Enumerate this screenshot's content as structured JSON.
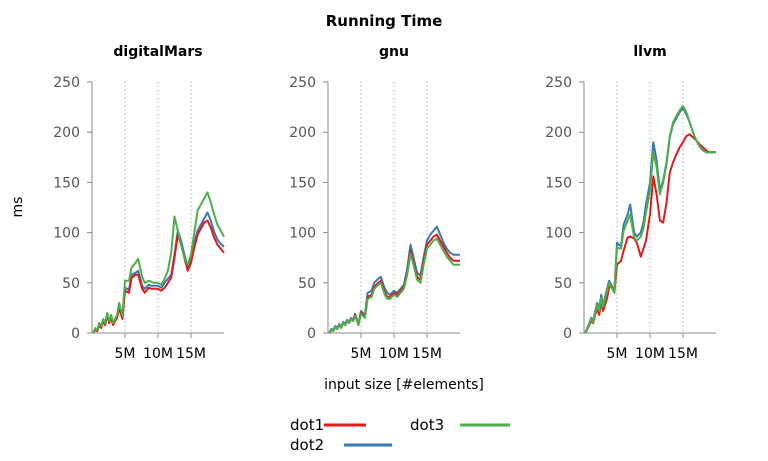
{
  "chart_data": {
    "type": "line",
    "title": "Running Time",
    "xlabel": "input size [#elements]",
    "ylabel": "ms",
    "ylim": [
      0,
      250
    ],
    "yticks": [
      0,
      50,
      100,
      150,
      200,
      250
    ],
    "xlim": [
      0,
      20
    ],
    "xticks": [
      5,
      10,
      15
    ],
    "xtick_labels": [
      "5M",
      "10M",
      "15M"
    ],
    "grid": "vertical-dotted",
    "legend_position": "bottom-center",
    "colors": {
      "dot1": "#e31a1c",
      "dot2": "#3a78b4",
      "dot3": "#4daf4a"
    },
    "x": [
      0.2,
      0.5,
      0.8,
      1.1,
      1.4,
      1.7,
      2.0,
      2.3,
      2.6,
      2.9,
      3.2,
      3.5,
      3.8,
      4.1,
      4.6,
      5.0,
      5.6,
      6.0,
      6.6,
      7.0,
      7.6,
      8.0,
      8.6,
      9.0,
      9.4,
      10.0,
      10.5,
      11.0,
      11.5,
      12.0,
      12.5,
      13.0,
      13.5,
      14.0,
      14.5,
      15.0,
      15.5,
      16.0,
      16.5,
      17.0,
      17.5,
      18.0,
      18.5,
      19.0,
      19.5,
      20.0
    ],
    "panels": [
      {
        "title": "digitalMars",
        "series": [
          {
            "name": "dot1",
            "values": [
              0,
              3,
              2,
              8,
              5,
              12,
              8,
              18,
              10,
              15,
              8,
              12,
              15,
              25,
              14,
              42,
              40,
              55,
              58,
              58,
              44,
              40,
              45,
              44,
              44,
              44,
              42,
              45,
              50,
              55,
              75,
              98,
              88,
              75,
              62,
              70,
              85,
              98,
              104,
              110,
              112,
              105,
              95,
              88,
              84,
              80
            ]
          },
          {
            "name": "dot2",
            "values": [
              0,
              4,
              2,
              9,
              6,
              13,
              9,
              19,
              11,
              16,
              9,
              13,
              16,
              27,
              15,
              45,
              43,
              58,
              60,
              62,
              47,
              44,
              48,
              47,
              47,
              47,
              45,
              50,
              54,
              58,
              78,
              102,
              92,
              78,
              66,
              74,
              90,
              102,
              108,
              114,
              120,
              112,
              101,
              93,
              89,
              86
            ]
          },
          {
            "name": "dot3",
            "values": [
              0,
              5,
              3,
              10,
              7,
              14,
              10,
              20,
              12,
              18,
              10,
              14,
              18,
              30,
              17,
              52,
              52,
              65,
              70,
              74,
              56,
              50,
              52,
              51,
              50,
              50,
              48,
              54,
              62,
              80,
              116,
              102,
              88,
              75,
              68,
              78,
              100,
              122,
              128,
              134,
              140,
              130,
              118,
              108,
              102,
              96
            ]
          }
        ]
      },
      {
        "title": "gnu",
        "series": [
          {
            "name": "dot1",
            "values": [
              0,
              3,
              2,
              6,
              4,
              8,
              5,
              10,
              8,
              12,
              10,
              14,
              12,
              18,
              8,
              20,
              16,
              36,
              38,
              46,
              50,
              52,
              40,
              36,
              36,
              40,
              38,
              42,
              46,
              60,
              82,
              70,
              56,
              53,
              72,
              88,
              92,
              96,
              98,
              92,
              86,
              80,
              75,
              72,
              72,
              72
            ]
          },
          {
            "name": "dot2",
            "values": [
              0,
              4,
              3,
              7,
              5,
              9,
              6,
              11,
              9,
              13,
              11,
              15,
              13,
              19,
              9,
              22,
              18,
              40,
              42,
              50,
              54,
              56,
              44,
              40,
              38,
              42,
              40,
              44,
              48,
              64,
              88,
              74,
              60,
              57,
              76,
              92,
              98,
              102,
              106,
              98,
              90,
              84,
              80,
              78,
              78,
              78
            ]
          },
          {
            "name": "dot3",
            "values": [
              0,
              3,
              2,
              6,
              4,
              8,
              5,
              10,
              8,
              12,
              10,
              14,
              12,
              17,
              8,
              19,
              15,
              34,
              36,
              44,
              48,
              50,
              38,
              34,
              34,
              38,
              36,
              40,
              44,
              58,
              79,
              67,
              53,
              50,
              68,
              84,
              88,
              92,
              94,
              88,
              82,
              76,
              72,
              68,
              68,
              68
            ]
          }
        ]
      },
      {
        "title": "llvm",
        "series": [
          {
            "name": "dot1",
            "values": [
              0,
              4,
              8,
              12,
              10,
              18,
              24,
              18,
              30,
              22,
              28,
              35,
              45,
              48,
              40,
              68,
              72,
              82,
              95,
              96,
              94,
              90,
              76,
              84,
              92,
              118,
              156,
              138,
              112,
              110,
              130,
              160,
              170,
              178,
              185,
              190,
              196,
              198,
              195,
              192,
              188,
              185,
              182,
              180,
              180,
              180
            ]
          },
          {
            "name": "dot2",
            "values": [
              0,
              5,
              10,
              15,
              12,
              22,
              30,
              24,
              38,
              28,
              36,
              44,
              52,
              48,
              42,
              90,
              86,
              108,
              118,
              128,
              100,
              96,
              100,
              110,
              128,
              150,
              190,
              172,
              142,
              152,
              170,
              195,
              208,
              214,
              220,
              224,
              218,
              210,
              200,
              192,
              186,
              182,
              180,
              180,
              180,
              180
            ]
          },
          {
            "name": "dot3",
            "values": [
              0,
              4,
              9,
              14,
              11,
              20,
              28,
              22,
              35,
              26,
              34,
              42,
              50,
              46,
              40,
              85,
              84,
              102,
              112,
              118,
              95,
              92,
              96,
              104,
              120,
              142,
              180,
              165,
              138,
              150,
              168,
              196,
              210,
              216,
              222,
              226,
              220,
              210,
              200,
              192,
              186,
              182,
              180,
              180,
              180,
              180
            ]
          }
        ]
      }
    ]
  }
}
